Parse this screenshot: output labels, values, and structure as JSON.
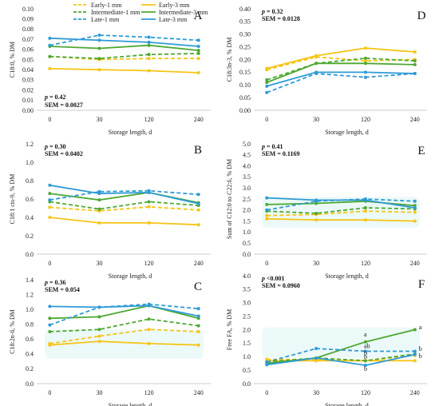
{
  "colors": {
    "early": "#f5c518",
    "intermediate": "#4ea832",
    "late": "#2e9bd6",
    "late_dark": "#3a6fd8"
  },
  "legend": [
    {
      "label": "Early-1 mm",
      "group": "early",
      "dashed": true
    },
    {
      "label": "Early-3 mm",
      "group": "early",
      "dashed": false
    },
    {
      "label": "Intermediate-1 mm",
      "group": "intermediate",
      "dashed": true
    },
    {
      "label": "Intermediate-3 mm",
      "group": "intermediate",
      "dashed": false
    },
    {
      "label": "Late-1 mm",
      "group": "late",
      "dashed": true
    },
    {
      "label": "Late-3 mm",
      "group": "late",
      "dashed": false
    }
  ],
  "chart_data": [
    {
      "panel": "A",
      "type": "line",
      "ylabel": "C18:0, % DM",
      "xlabel": "Storage length, d",
      "ylim": [
        0,
        0.1
      ],
      "yticks": [
        "0.00",
        "0.01",
        "0.02",
        "0.03",
        "0.04",
        "0.05",
        "0.06",
        "0.07",
        "0.08",
        "0.09",
        "0.10"
      ],
      "x": [
        0,
        30,
        120,
        240
      ],
      "p_text": "p = 0.42",
      "sem_text": "SEM = 0.0027",
      "stats_position": "bottom-left",
      "series": [
        {
          "name": "Early-1 mm",
          "values": [
            0.053,
            0.05,
            0.051,
            0.051
          ]
        },
        {
          "name": "Early-3 mm",
          "values": [
            0.041,
            0.04,
            0.039,
            0.037
          ]
        },
        {
          "name": "Intermediate-1 mm",
          "values": [
            0.053,
            0.051,
            0.055,
            0.056
          ]
        },
        {
          "name": "Intermediate-3 mm",
          "values": [
            0.063,
            0.061,
            0.064,
            0.059
          ]
        },
        {
          "name": "Late-1 mm",
          "values": [
            0.064,
            0.074,
            0.072,
            0.069
          ]
        },
        {
          "name": "Late-3 mm",
          "values": [
            0.071,
            0.069,
            0.067,
            0.063
          ]
        }
      ]
    },
    {
      "panel": "D",
      "type": "line",
      "ylabel": "C18:3n-3, % DM",
      "xlabel": "Storage length, d",
      "ylim": [
        0,
        0.4
      ],
      "yticks": [
        "0.00",
        "0.05",
        "0.10",
        "0.15",
        "0.20",
        "0.25",
        "0.30",
        "0.35",
        "0.40"
      ],
      "x": [
        0,
        30,
        120,
        240
      ],
      "p_text": "p = 0.32",
      "sem_text": "SEM = 0.0128",
      "stats_position": "top-left",
      "series": [
        {
          "name": "Early-1 mm",
          "values": [
            0.16,
            0.21,
            0.195,
            0.2
          ]
        },
        {
          "name": "Early-3 mm",
          "values": [
            0.165,
            0.215,
            0.245,
            0.23
          ]
        },
        {
          "name": "Intermediate-1 mm",
          "values": [
            0.12,
            0.185,
            0.205,
            0.195
          ]
        },
        {
          "name": "Intermediate-3 mm",
          "values": [
            0.11,
            0.185,
            0.185,
            0.18
          ]
        },
        {
          "name": "Late-1 mm",
          "values": [
            0.07,
            0.145,
            0.13,
            0.145
          ]
        },
        {
          "name": "Late-3 mm",
          "values": [
            0.095,
            0.15,
            0.15,
            0.145
          ]
        }
      ]
    },
    {
      "panel": "B",
      "type": "line",
      "ylabel": "C18:1 cis-9, % DM",
      "xlabel": "Storage length, d",
      "ylim": [
        0,
        1.2
      ],
      "yticks": [
        "0.0",
        "0.2",
        "0.4",
        "0.6",
        "0.8",
        "1.0",
        "1.2"
      ],
      "x": [
        0,
        30,
        120,
        240
      ],
      "p_text": "p = 0.30",
      "sem_text": "SEM = 0.0402",
      "stats_position": "top-left",
      "series": [
        {
          "name": "Early-1 mm",
          "values": [
            0.51,
            0.47,
            0.515,
            0.48
          ]
        },
        {
          "name": "Early-3 mm",
          "values": [
            0.4,
            0.34,
            0.34,
            0.32
          ]
        },
        {
          "name": "Intermediate-1 mm",
          "values": [
            0.57,
            0.49,
            0.57,
            0.53
          ]
        },
        {
          "name": "Intermediate-3 mm",
          "values": [
            0.66,
            0.59,
            0.67,
            0.56
          ]
        },
        {
          "name": "Late-1 mm",
          "values": [
            0.59,
            0.68,
            0.69,
            0.65
          ]
        },
        {
          "name": "Late-3 mm",
          "values": [
            0.75,
            0.66,
            0.67,
            0.55
          ]
        }
      ]
    },
    {
      "panel": "E",
      "type": "line",
      "ylabel": "Sum of C12:0 to C22:6, % DM",
      "xlabel": "Storage length, d",
      "ylim": [
        0,
        5.0
      ],
      "yticks": [
        "0.0",
        "0.5",
        "1.0",
        "1.5",
        "2.0",
        "2.5",
        "3.0",
        "3.5",
        "4.0",
        "4.5",
        "5.0"
      ],
      "x": [
        0,
        30,
        120,
        240
      ],
      "p_text": "p = 0.41",
      "sem_text": "SEM = 0.1169",
      "stats_position": "top-left",
      "series": [
        {
          "name": "Early-1 mm",
          "values": [
            1.75,
            1.8,
            1.95,
            1.9
          ]
        },
        {
          "name": "Early-3 mm",
          "values": [
            1.6,
            1.55,
            1.55,
            1.5
          ]
        },
        {
          "name": "Intermediate-1 mm",
          "values": [
            1.95,
            1.85,
            2.1,
            2.05
          ]
        },
        {
          "name": "Intermediate-3 mm",
          "values": [
            2.25,
            2.3,
            2.4,
            2.2
          ]
        },
        {
          "name": "Late-1 mm",
          "values": [
            2.0,
            2.4,
            2.5,
            2.4
          ]
        },
        {
          "name": "Late-3 mm",
          "values": [
            2.55,
            2.45,
            2.45,
            2.1
          ]
        }
      ]
    },
    {
      "panel": "C",
      "type": "line",
      "ylabel": "C18:2n-6, % DM",
      "xlabel": "Storage length, d",
      "ylim": [
        0,
        1.4
      ],
      "yticks": [
        "0.0",
        "0.2",
        "0.4",
        "0.6",
        "0.8",
        "1.0",
        "1.2",
        "1.4"
      ],
      "x": [
        0,
        30,
        120,
        240
      ],
      "p_text": "p = 0.36",
      "sem_text": "SEM = 0.054",
      "stats_position": "top-left",
      "series": [
        {
          "name": "Early-1 mm",
          "values": [
            0.54,
            0.64,
            0.73,
            0.7
          ]
        },
        {
          "name": "Early-3 mm",
          "values": [
            0.52,
            0.57,
            0.54,
            0.52
          ]
        },
        {
          "name": "Intermediate-1 mm",
          "values": [
            0.7,
            0.73,
            0.87,
            0.78
          ]
        },
        {
          "name": "Intermediate-3 mm",
          "values": [
            0.88,
            0.9,
            1.05,
            0.88
          ]
        },
        {
          "name": "Late-1 mm",
          "values": [
            0.79,
            1.03,
            1.07,
            1.01
          ]
        },
        {
          "name": "Late-3 mm",
          "values": [
            1.04,
            1.03,
            1.05,
            0.91
          ]
        }
      ]
    },
    {
      "panel": "F",
      "type": "line",
      "ylabel": "Free FA, % DM",
      "xlabel": "Storage length, d",
      "ylim": [
        0,
        4.0
      ],
      "yticks": [
        "0.0",
        "0.5",
        "1.0",
        "1.5",
        "2.0",
        "2.5",
        "3.0",
        "3.5",
        "4.0"
      ],
      "x": [
        0,
        30,
        120,
        240
      ],
      "p_text": "p <0.001",
      "sem_text": "SEM = 0.0960",
      "stats_position": "top-left",
      "series": [
        {
          "name": "Early-1 mm",
          "values": [
            0.9,
            0.9,
            0.85,
            1.05
          ]
        },
        {
          "name": "Early-3 mm",
          "values": [
            0.85,
            0.85,
            0.85,
            0.85
          ]
        },
        {
          "name": "Intermediate-1 mm",
          "values": [
            0.8,
            0.95,
            0.85,
            1.1
          ]
        },
        {
          "name": "Intermediate-3 mm",
          "values": [
            0.75,
            0.95,
            1.55,
            2.0
          ]
        },
        {
          "name": "Late-1 mm",
          "values": [
            0.8,
            1.3,
            1.2,
            1.2
          ]
        },
        {
          "name": "Late-3 mm",
          "values": [
            0.7,
            0.95,
            0.68,
            1.08
          ]
        }
      ],
      "annotations": [
        {
          "text": "a",
          "x": 120,
          "y": 1.75,
          "group": "intermediate"
        },
        {
          "text": "ab",
          "x": 120,
          "y": 1.32,
          "group": "intermediate"
        },
        {
          "text": "b",
          "x": 120,
          "y": 1.05,
          "group": "intermediate"
        },
        {
          "text": "b",
          "x": 120,
          "y": 0.92,
          "group": "intermediate"
        },
        {
          "text": "b",
          "x": 120,
          "y": 0.48,
          "group": "late"
        },
        {
          "text": "a",
          "x": 240,
          "y": 2.02,
          "group": "intermediate"
        },
        {
          "text": "b",
          "x": 240,
          "y": 1.22,
          "group": "late"
        },
        {
          "text": "b",
          "x": 240,
          "y": 0.95,
          "group": "late"
        }
      ]
    }
  ]
}
